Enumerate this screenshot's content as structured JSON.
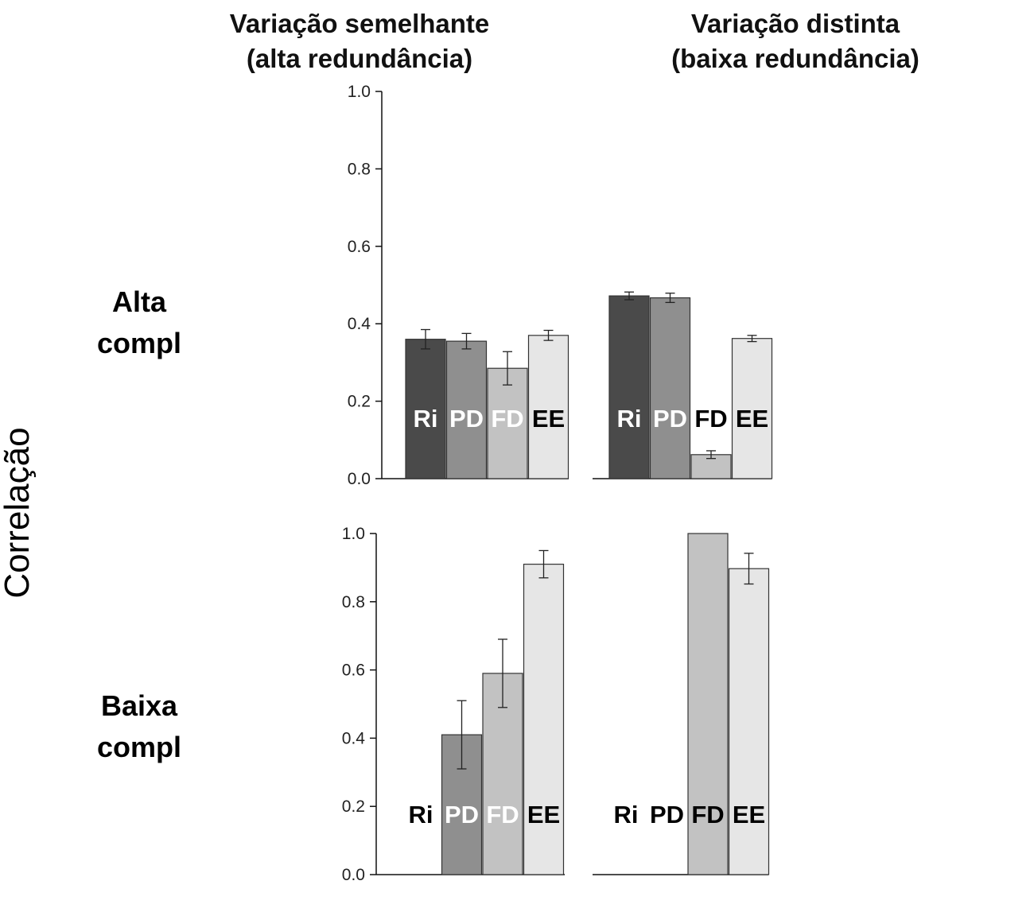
{
  "headers": {
    "col1": [
      "Variação semelhante",
      "(alta redundância)"
    ],
    "col2": [
      "Variação distinta",
      "(baixa redundância)"
    ],
    "row1": [
      "Alta",
      "compl"
    ],
    "row2": [
      "Baixa",
      "compl"
    ],
    "y_title": "Correlação"
  },
  "colors": {
    "Ri": "#4a4a4a",
    "PD": "#8f8f8f",
    "FD": "#c2c2c2",
    "EE": "#e6e6e6",
    "divider": "#111111"
  },
  "chart_data": [
    {
      "type": "bar",
      "panel": "top-left",
      "categories": [
        "Ri",
        "PD",
        "FD",
        "EE"
      ],
      "values": [
        0.36,
        0.355,
        0.285,
        0.37
      ],
      "errors": [
        0.025,
        0.02,
        0.043,
        0.013
      ],
      "label_colors": [
        "#ffffff",
        "#ffffff",
        "#ffffff",
        "#000000"
      ],
      "ylim": [
        0,
        1
      ],
      "yticks": [
        "0.0",
        "0.2",
        "0.4",
        "0.6",
        "0.8",
        "1.0"
      ],
      "show_yaxis": true
    },
    {
      "type": "bar",
      "panel": "top-right",
      "categories": [
        "Ri",
        "PD",
        "FD",
        "EE"
      ],
      "values": [
        0.472,
        0.467,
        0.062,
        0.362
      ],
      "errors": [
        0.01,
        0.012,
        0.01,
        0.008
      ],
      "label_colors": [
        "#ffffff",
        "#ffffff",
        "#000000",
        "#000000"
      ],
      "ylim": [
        0,
        1
      ],
      "yticks": [],
      "show_yaxis": false
    },
    {
      "type": "bar",
      "panel": "bottom-left",
      "categories": [
        "Ri",
        "PD",
        "FD",
        "EE"
      ],
      "values": [
        null,
        0.41,
        0.59,
        0.91
      ],
      "errors": [
        null,
        0.1,
        0.1,
        0.04
      ],
      "label_colors": [
        "#000000",
        "#ffffff",
        "#ffffff",
        "#000000"
      ],
      "ylim": [
        0,
        1
      ],
      "yticks": [
        "0.0",
        "0.2",
        "0.4",
        "0.6",
        "0.8",
        "1.0"
      ],
      "show_yaxis": true
    },
    {
      "type": "bar",
      "panel": "bottom-right",
      "categories": [
        "Ri",
        "PD",
        "FD",
        "EE"
      ],
      "values": [
        null,
        null,
        1.0,
        0.897
      ],
      "errors": [
        null,
        null,
        0,
        0.045
      ],
      "label_colors": [
        "#000000",
        "#000000",
        "#000000",
        "#000000"
      ],
      "ylim": [
        0,
        1
      ],
      "yticks": [],
      "show_yaxis": false
    }
  ]
}
